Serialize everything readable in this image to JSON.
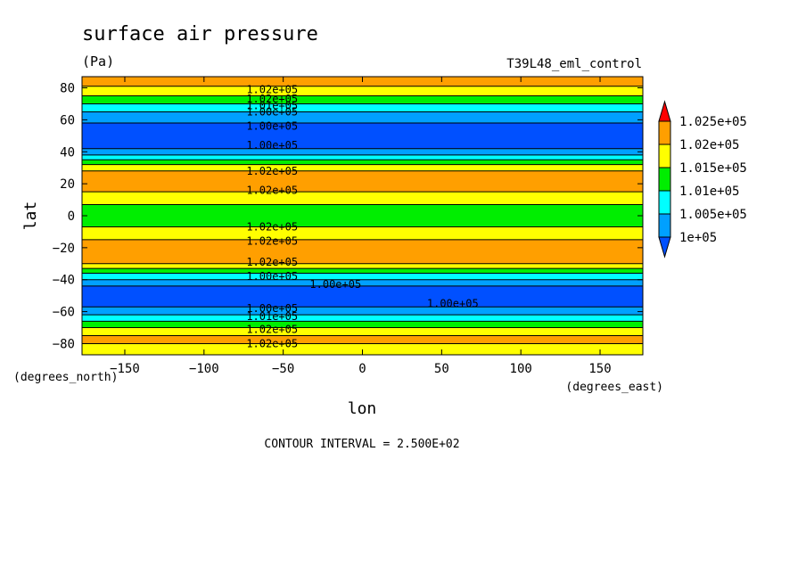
{
  "chart_data": {
    "type": "heatmap",
    "title": "surface air pressure",
    "units": "(Pa)",
    "run_name": "T39L48_eml_control",
    "xlabel": "lon",
    "ylabel": "lat",
    "x_unit_label": "(degrees_east)",
    "y_unit_label": "(degrees_north)",
    "footer": "CONTOUR INTERVAL = 2.500E+02",
    "xlim": [
      -177,
      177
    ],
    "ylim": [
      -87,
      87
    ],
    "x_ticks": [
      {
        "value": -150,
        "label": "−150"
      },
      {
        "value": -100,
        "label": "−100"
      },
      {
        "value": -50,
        "label": "−50"
      },
      {
        "value": 0,
        "label": "0"
      },
      {
        "value": 50,
        "label": "50"
      },
      {
        "value": 100,
        "label": "100"
      },
      {
        "value": 150,
        "label": "150"
      }
    ],
    "y_ticks": [
      {
        "value": 80,
        "label": "80"
      },
      {
        "value": 60,
        "label": "60"
      },
      {
        "value": 40,
        "label": "40"
      },
      {
        "value": 20,
        "label": "20"
      },
      {
        "value": 0,
        "label": "0"
      },
      {
        "value": -20,
        "label": "−20"
      },
      {
        "value": -40,
        "label": "−40"
      },
      {
        "value": -60,
        "label": "−60"
      },
      {
        "value": -80,
        "label": "−80"
      }
    ],
    "colorbar": {
      "levels": [
        "1.025e+05",
        "1.02e+05",
        "1.015e+05",
        "1.01e+05",
        "1.005e+05",
        "1e+05"
      ],
      "colors": [
        "#ff0000",
        "#ff9f00",
        "#ffff00",
        "#00ee00",
        "#00ffff",
        "#00a0ff",
        "#0050ff"
      ]
    },
    "contour_interval": 250,
    "bands": [
      {
        "lat_top": 87,
        "lat_bottom": 81,
        "color": "#ff9f00"
      },
      {
        "lat_top": 81,
        "lat_bottom": 75,
        "color": "#ffff00"
      },
      {
        "lat_top": 75,
        "lat_bottom": 70,
        "color": "#00ee00"
      },
      {
        "lat_top": 70,
        "lat_bottom": 65,
        "color": "#00ffff"
      },
      {
        "lat_top": 65,
        "lat_bottom": 58,
        "color": "#00a0ff"
      },
      {
        "lat_top": 58,
        "lat_bottom": 42,
        "color": "#0050ff"
      },
      {
        "lat_top": 42,
        "lat_bottom": 38,
        "color": "#00a0ff"
      },
      {
        "lat_top": 38,
        "lat_bottom": 35,
        "color": "#00ffff"
      },
      {
        "lat_top": 35,
        "lat_bottom": 32,
        "color": "#00ee00"
      },
      {
        "lat_top": 32,
        "lat_bottom": 28,
        "color": "#ffff00"
      },
      {
        "lat_top": 28,
        "lat_bottom": 15,
        "color": "#ff9f00"
      },
      {
        "lat_top": 15,
        "lat_bottom": 7,
        "color": "#ffff00"
      },
      {
        "lat_top": 7,
        "lat_bottom": -7,
        "color": "#00ee00"
      },
      {
        "lat_top": -7,
        "lat_bottom": -15,
        "color": "#ffff00"
      },
      {
        "lat_top": -15,
        "lat_bottom": -30,
        "color": "#ff9f00"
      },
      {
        "lat_top": -30,
        "lat_bottom": -33,
        "color": "#ffff00"
      },
      {
        "lat_top": -33,
        "lat_bottom": -36,
        "color": "#00ee00"
      },
      {
        "lat_top": -36,
        "lat_bottom": -40,
        "color": "#00ffff"
      },
      {
        "lat_top": -40,
        "lat_bottom": -44,
        "color": "#00a0ff"
      },
      {
        "lat_top": -44,
        "lat_bottom": -57,
        "color": "#0050ff"
      },
      {
        "lat_top": -57,
        "lat_bottom": -62,
        "color": "#00a0ff"
      },
      {
        "lat_top": -62,
        "lat_bottom": -66,
        "color": "#00ffff"
      },
      {
        "lat_top": -66,
        "lat_bottom": -70,
        "color": "#00ee00"
      },
      {
        "lat_top": -70,
        "lat_bottom": -75,
        "color": "#ffff00"
      },
      {
        "lat_top": -75,
        "lat_bottom": -80,
        "color": "#ff9f00"
      },
      {
        "lat_top": -80,
        "lat_bottom": -87,
        "color": "#ffff00"
      }
    ],
    "contour_labels": [
      {
        "text": "1.02e+05",
        "lon": -57,
        "lat": 79
      },
      {
        "text": "1.02e+05",
        "lon": -57,
        "lat": 73
      },
      {
        "text": "1.01e+05",
        "lon": -57,
        "lat": 69
      },
      {
        "text": "1.00e+05",
        "lon": -57,
        "lat": 65
      },
      {
        "text": "1.00e+05",
        "lon": -57,
        "lat": 56
      },
      {
        "text": "1.00e+05",
        "lon": -57,
        "lat": 44
      },
      {
        "text": "1.02e+05",
        "lon": -57,
        "lat": 28
      },
      {
        "text": "1.02e+05",
        "lon": -57,
        "lat": 16
      },
      {
        "text": "1.02e+05",
        "lon": -57,
        "lat": -7
      },
      {
        "text": "1.02e+05",
        "lon": -57,
        "lat": -16
      },
      {
        "text": "1.02e+05",
        "lon": -57,
        "lat": -29
      },
      {
        "text": "1.00e+05",
        "lon": -57,
        "lat": -38
      },
      {
        "text": "1.00e+05",
        "lon": -17,
        "lat": -43
      },
      {
        "text": "1.00e+05",
        "lon": 57,
        "lat": -55
      },
      {
        "text": "1.00e+05",
        "lon": -57,
        "lat": -58
      },
      {
        "text": "1.01e+05",
        "lon": -57,
        "lat": -63
      },
      {
        "text": "1.02e+05",
        "lon": -57,
        "lat": -71
      },
      {
        "text": "1.02e+05",
        "lon": -57,
        "lat": -80
      }
    ]
  }
}
